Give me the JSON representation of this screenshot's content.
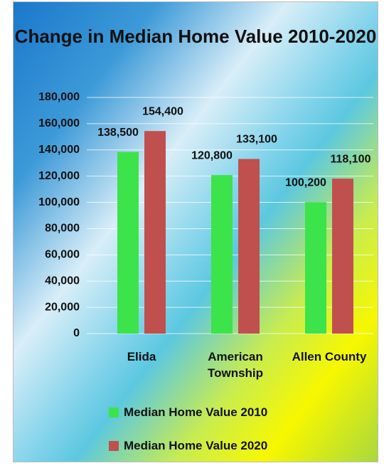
{
  "chart_data": {
    "type": "bar",
    "title": "Change in Median Home Value 2010-2020",
    "categories": [
      "Elida",
      "American Township",
      "Allen County"
    ],
    "series": [
      {
        "name": "Median Home Value 2010",
        "color": "#3de34a",
        "values": [
          138500,
          120800,
          100200
        ],
        "value_labels": [
          "138,500",
          "120,800",
          "100,200"
        ]
      },
      {
        "name": "Median Home Value 2020",
        "color": "#c0504d",
        "values": [
          154400,
          133100,
          118100
        ],
        "value_labels": [
          "154,400",
          "133,100",
          "118,100"
        ]
      }
    ],
    "ylim": [
      0,
      180000
    ],
    "yticks": [
      0,
      {
        "value": 20000,
        "label": "20,000"
      },
      {
        "value": 40000,
        "label": "40,000"
      },
      {
        "value": 60000,
        "label": "60,000"
      },
      {
        "value": 80000,
        "label": "80,000"
      },
      {
        "value": 100000,
        "label": "100,000"
      },
      {
        "value": 120000,
        "label": "120,000"
      },
      {
        "value": 140000,
        "label": "140,000"
      },
      {
        "value": 160000,
        "label": "160,000"
      },
      {
        "value": 180000,
        "label": "180,000"
      }
    ],
    "grid": true,
    "legend": "bottom"
  }
}
